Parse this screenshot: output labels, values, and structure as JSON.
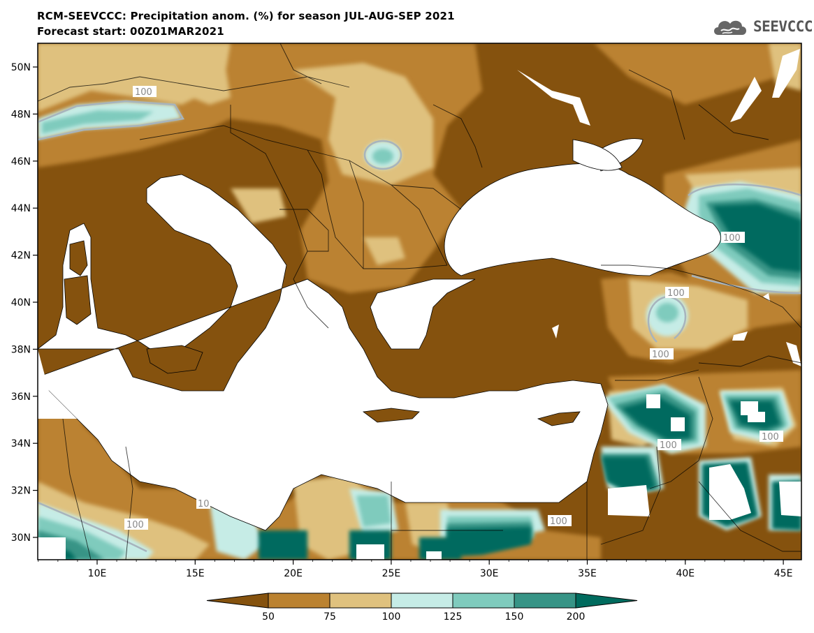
{
  "header": {
    "title": "RCM-SEEVCCC: Precipitation anom. (%) for season JUL-AUG-SEP 2021",
    "subtitle": "Forecast start: 00Z01MAR2021"
  },
  "brand": {
    "name": "SEEVCCC",
    "icon": "cloud-logo-icon"
  },
  "map": {
    "lat_labels": [
      "50N",
      "48N",
      "46N",
      "44N",
      "42N",
      "40N",
      "38N",
      "36N",
      "34N",
      "32N",
      "30N"
    ],
    "lon_labels": [
      "10E",
      "15E",
      "20E",
      "25E",
      "30E",
      "35E",
      "40E",
      "45E"
    ],
    "contour_labels": [
      "100",
      "100",
      "100",
      "100",
      "100",
      "100",
      "100",
      "100",
      "10"
    ],
    "colors": {
      "lt50": "#85520e",
      "50_75": "#bb8230",
      "75_100": "#dfc17e",
      "100_125": "#c6ece6",
      "125_150": "#7fcbbd",
      "150_200": "#379486",
      "gt200": "#006b5e",
      "sea": "#ffffff"
    }
  },
  "colorbar": {
    "ticks": [
      "50",
      "75",
      "100",
      "125",
      "150",
      "200"
    ],
    "colors": [
      "#85520e",
      "#bb8230",
      "#dfc17e",
      "#c6ece6",
      "#7fcbbd",
      "#379486",
      "#006b5e"
    ]
  }
}
